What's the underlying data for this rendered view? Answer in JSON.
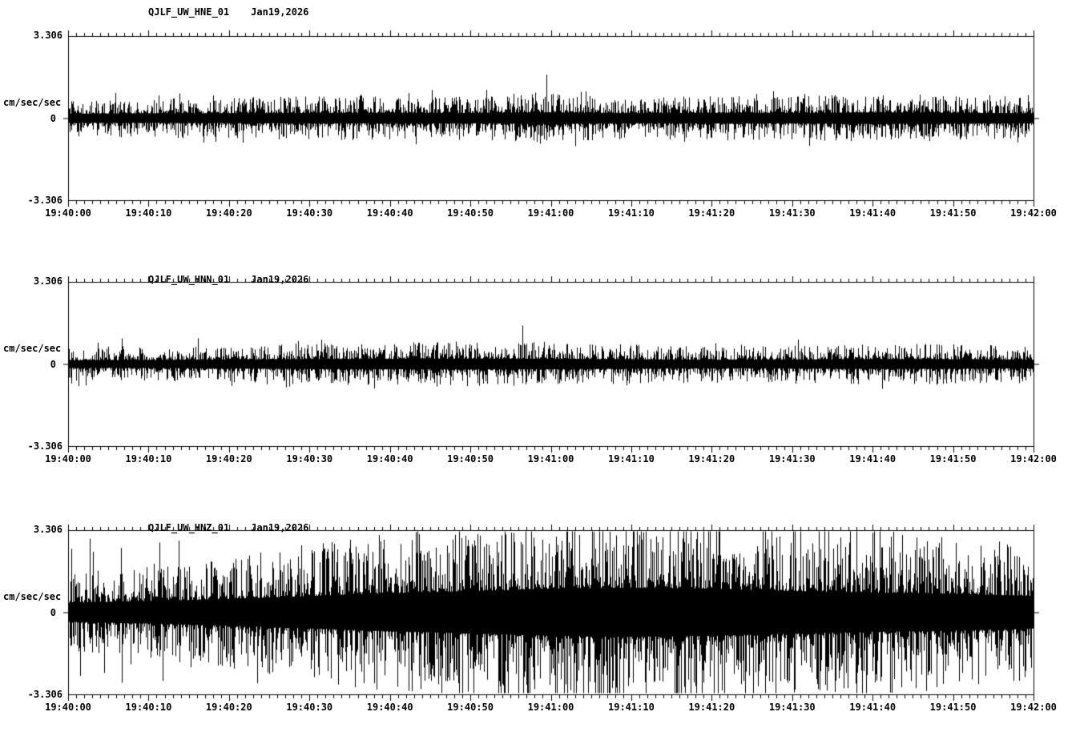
{
  "page": {
    "background": "#ffffff",
    "foreground": "#000000"
  },
  "chart_data": [
    {
      "type": "line",
      "kind": "seismogram-trace",
      "station": "QJLF_UW_HNE_01",
      "date": "Jan19,2026",
      "title": "QJLF_UW_HNE_01  Jan19,2026",
      "ylabel": "cm/sec/sec",
      "ylim": [
        -3.306,
        3.306
      ],
      "ytick_labels": [
        "3.306",
        "0",
        "-3.306"
      ],
      "x_ticks": [
        "19:40:00",
        "19:40:10",
        "19:40:20",
        "19:40:30",
        "19:40:40",
        "19:40:50",
        "19:41:00",
        "19:41:10",
        "19:41:20",
        "19:41:30",
        "19:41:40",
        "19:41:50",
        "19:42:00"
      ],
      "x_range_seconds": 120,
      "x_minor_tick_seconds": 1,
      "x_major_tick_seconds": 10,
      "grid": false,
      "legend": false,
      "line_color": "#000000",
      "envelope_dt_seconds": 10,
      "envelope": [
        0.4,
        0.42,
        0.44,
        0.46,
        0.48,
        0.46,
        0.52,
        0.44,
        0.48,
        0.46,
        0.52,
        0.48,
        0.44
      ],
      "spike_rate": 0.05,
      "spike_amp": 1.15,
      "events": [
        {
          "t": 59.5,
          "amp": 1.75
        }
      ]
    },
    {
      "type": "line",
      "kind": "seismogram-trace",
      "station": "QJLF_UW_HNN_01",
      "date": "Jan19,2026",
      "title": "QJLF_UW_HNN_01  Jan19,2026",
      "ylabel": "cm/sec/sec",
      "ylim": [
        -3.306,
        3.306
      ],
      "ytick_labels": [
        "3.306",
        "0",
        "-3.306"
      ],
      "x_ticks": [
        "19:40:00",
        "19:40:10",
        "19:40:20",
        "19:40:30",
        "19:40:40",
        "19:40:50",
        "19:41:00",
        "19:41:10",
        "19:41:20",
        "19:41:30",
        "19:41:40",
        "19:41:50",
        "19:42:00"
      ],
      "x_range_seconds": 120,
      "x_minor_tick_seconds": 1,
      "x_major_tick_seconds": 10,
      "grid": false,
      "legend": false,
      "line_color": "#000000",
      "envelope_dt_seconds": 10,
      "envelope": [
        0.34,
        0.36,
        0.4,
        0.44,
        0.46,
        0.48,
        0.46,
        0.42,
        0.38,
        0.4,
        0.44,
        0.42,
        0.38
      ],
      "spike_rate": 0.05,
      "spike_amp": 1.05,
      "events": [
        {
          "t": 56.5,
          "amp": 1.55
        }
      ]
    },
    {
      "type": "line",
      "kind": "seismogram-trace",
      "station": "QJLF_UW_HNZ_01",
      "date": "Jan19,2026",
      "title": "QJLF_UW_HNZ_01  Jan19,2026",
      "ylabel": "cm/sec/sec",
      "ylim": [
        -3.306,
        3.306
      ],
      "ytick_labels": [
        "3.306",
        "0",
        "-3.306"
      ],
      "x_ticks": [
        "19:40:00",
        "19:40:10",
        "19:40:20",
        "19:40:30",
        "19:40:40",
        "19:40:50",
        "19:41:00",
        "19:41:10",
        "19:41:20",
        "19:41:30",
        "19:41:40",
        "19:41:50",
        "19:42:00"
      ],
      "x_range_seconds": 120,
      "x_minor_tick_seconds": 1,
      "x_major_tick_seconds": 10,
      "grid": false,
      "legend": false,
      "line_color": "#000000",
      "envelope_dt_seconds": 10,
      "envelope": [
        0.85,
        1.0,
        1.2,
        1.45,
        1.7,
        1.9,
        2.1,
        2.2,
        2.1,
        1.9,
        1.75,
        1.65,
        1.45
      ],
      "spike_rate": 0.06,
      "spike_amp": 3.0,
      "events": [
        {
          "t": 62,
          "amp": 3.25
        },
        {
          "t": 66,
          "amp": 3.3
        },
        {
          "t": 100,
          "amp": 3.2
        }
      ]
    }
  ]
}
